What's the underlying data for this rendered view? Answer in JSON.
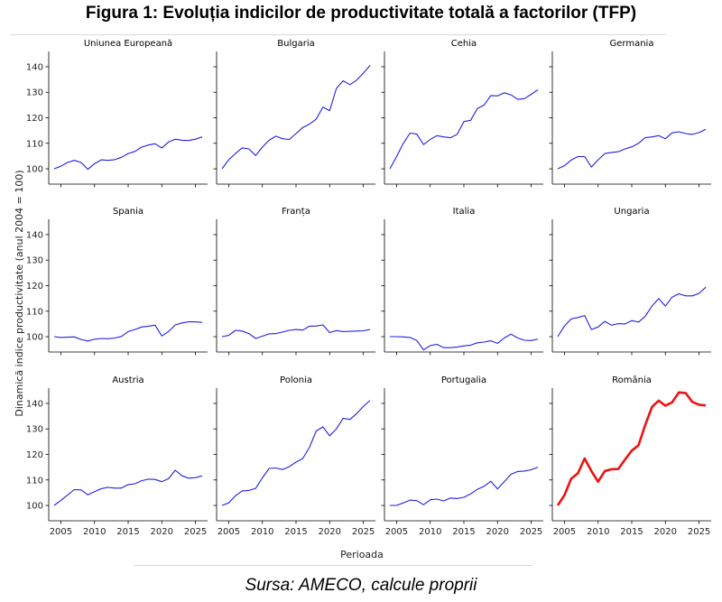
{
  "figure": {
    "title": "Figura 1: Evoluția indicilor de productivitate totală a factorilor (TFP)",
    "source": "Sursa: AMECO, calcule proprii"
  },
  "chart_data": {
    "type": "line",
    "xlabel": "Perioada",
    "ylabel": "Dinamică indice productivitate (anul 2004 = 100)",
    "xlim": [
      2003.2,
      2026.8
    ],
    "ylim": [
      94,
      146
    ],
    "xticks": [
      2005,
      2010,
      2015,
      2020,
      2025
    ],
    "yticks": [
      100,
      110,
      120,
      130,
      140
    ],
    "x": [
      2004,
      2005,
      2006,
      2007,
      2008,
      2009,
      2010,
      2011,
      2012,
      2013,
      2014,
      2015,
      2016,
      2017,
      2018,
      2019,
      2020,
      2021,
      2022,
      2023,
      2024,
      2025,
      2026
    ],
    "colors": {
      "default": "#2020e0",
      "highlight": "#ee1111"
    },
    "series": [
      {
        "name": "Uniunea Europeană",
        "values": [
          100,
          101,
          102.5,
          103.3,
          102.5,
          99.8,
          102,
          103.5,
          103.3,
          103.6,
          104.5,
          106,
          106.8,
          108.5,
          109.3,
          109.8,
          108.2,
          110.5,
          111.6,
          111.2,
          111.1,
          111.6,
          112.5
        ]
      },
      {
        "name": "Bulgaria",
        "values": [
          100,
          103.5,
          106,
          108.2,
          107.8,
          105.2,
          108.5,
          111.2,
          112.8,
          111.8,
          111.5,
          113.8,
          116.2,
          117.5,
          119.5,
          124.2,
          122.8,
          131.5,
          134.5,
          133,
          134.7,
          137.5,
          140.5
        ]
      },
      {
        "name": "Cehia",
        "values": [
          100,
          104.8,
          110,
          114,
          113.6,
          109.5,
          111.5,
          113,
          112.5,
          112.2,
          113.5,
          118.5,
          119,
          123.6,
          125,
          128.7,
          128.6,
          129.8,
          129,
          127.2,
          127.5,
          129.2,
          131
        ]
      },
      {
        "name": "Germania",
        "values": [
          100,
          101.2,
          103.4,
          104.8,
          104.8,
          100.7,
          103.5,
          106,
          106.4,
          106.7,
          107.8,
          108.6,
          110,
          112.2,
          112.5,
          113,
          111.8,
          114.1,
          114.5,
          113.8,
          113.5,
          114.2,
          115.5
        ]
      },
      {
        "name": "Spania",
        "values": [
          100,
          99.7,
          99.8,
          99.9,
          98.9,
          98.3,
          99,
          99.3,
          99.2,
          99.5,
          100.1,
          102,
          102.8,
          103.8,
          104.1,
          104.5,
          100.3,
          102,
          104.6,
          105.4,
          105.8,
          105.8,
          105.6
        ]
      },
      {
        "name": "Franța",
        "values": [
          100,
          100.5,
          102.5,
          102.2,
          101.2,
          99.3,
          100.2,
          101.1,
          101.2,
          101.8,
          102.5,
          102.8,
          102.6,
          104.1,
          104.2,
          104.6,
          101.6,
          102.4,
          102,
          102.1,
          102.2,
          102.3,
          102.8
        ]
      },
      {
        "name": "Italia",
        "values": [
          100,
          100,
          99.9,
          99.7,
          98.5,
          94.8,
          96.5,
          97,
          95.7,
          95.7,
          95.9,
          96.4,
          96.7,
          97.6,
          97.9,
          98.4,
          97.4,
          99.5,
          101,
          99.5,
          98.6,
          98.5,
          99.1
        ]
      },
      {
        "name": "Ungaria",
        "values": [
          100,
          104.2,
          107,
          107.5,
          108.3,
          102.8,
          103.8,
          106,
          104.5,
          105.1,
          105,
          106.3,
          105.7,
          108,
          112,
          114.9,
          112,
          115.5,
          116.8,
          116,
          116,
          117,
          119.4
        ]
      },
      {
        "name": "Austria",
        "values": [
          100,
          102,
          104.1,
          106.2,
          106.1,
          104.2,
          105.4,
          106.6,
          107.1,
          106.8,
          106.8,
          108.2,
          108.5,
          109.7,
          110.3,
          110.2,
          109.3,
          110.5,
          113.8,
          111.6,
          110.7,
          110.9,
          111.6
        ]
      },
      {
        "name": "Polonia",
        "values": [
          100,
          101,
          103.8,
          105.7,
          105.9,
          106.7,
          110.8,
          114.5,
          114.7,
          114.1,
          115.2,
          117,
          118.4,
          122.8,
          129.2,
          130.8,
          127.3,
          130,
          134.2,
          133.7,
          136,
          138.8,
          141.2
        ]
      },
      {
        "name": "Portugalia",
        "values": [
          100,
          100,
          101,
          102.1,
          101.9,
          100.3,
          102.2,
          102.5,
          101.8,
          102.9,
          102.7,
          103.2,
          104.5,
          106.3,
          107.5,
          109.5,
          106.5,
          109.3,
          112.2,
          113.3,
          113.5,
          114,
          115
        ]
      },
      {
        "name": "România",
        "values": [
          100,
          104,
          110.5,
          112.6,
          118.4,
          113.5,
          109.3,
          113.5,
          114.2,
          114.3,
          118,
          121.5,
          123.6,
          131.5,
          138.6,
          141.1,
          139.1,
          140.4,
          144.3,
          144.1,
          140.6,
          139.5,
          139.2
        ],
        "highlight": true
      }
    ]
  }
}
